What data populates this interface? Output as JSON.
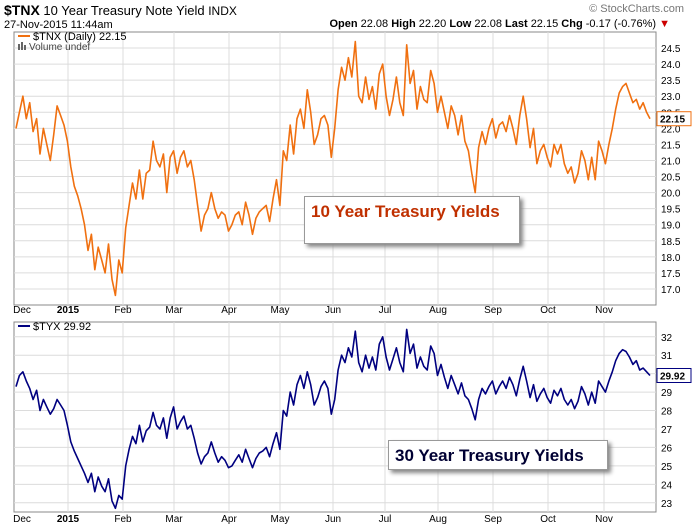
{
  "header": {
    "symbol": "$TNX",
    "name": "10 Year Treasury Note Yield",
    "exchange": "INDX",
    "date": "27-Nov-2015 11:44am",
    "brand": "© StockCharts.com",
    "open_label": "Open",
    "open": "22.08",
    "high_label": "High",
    "high": "22.20",
    "low_label": "Low",
    "low": "22.08",
    "last_label": "Last",
    "last": "22.15",
    "chg_label": "Chg",
    "chg": "-0.17 (-0.76%)"
  },
  "chart_data": [
    {
      "type": "line",
      "legend": "$TNX (Daily) 22.15",
      "volume_legend": "Volume undef",
      "annotation": "10 Year Treasury Yields",
      "last_value_label": "22.15",
      "color": "#f07010",
      "ylim": [
        16.5,
        25.0
      ],
      "yticks": [
        "17.0",
        "17.5",
        "18.0",
        "18.5",
        "19.0",
        "19.5",
        "20.0",
        "20.5",
        "21.0",
        "21.5",
        "22.0",
        "22.5",
        "23.0",
        "23.5",
        "24.0",
        "24.5"
      ],
      "x_labels": [
        "Dec",
        "2015",
        "Feb",
        "Mar",
        "Apr",
        "May",
        "Jun",
        "Jul",
        "Aug",
        "Sep",
        "Oct",
        "Nov"
      ],
      "values": [
        22.0,
        22.5,
        23.0,
        22.3,
        22.8,
        21.9,
        22.3,
        21.2,
        22.0,
        21.5,
        21.0,
        21.8,
        22.7,
        22.4,
        22.1,
        21.6,
        20.8,
        20.2,
        19.9,
        19.5,
        19.0,
        18.2,
        18.7,
        17.6,
        18.3,
        17.9,
        17.5,
        18.4,
        17.3,
        16.8,
        17.9,
        17.5,
        18.9,
        19.6,
        20.3,
        19.8,
        20.7,
        19.8,
        20.6,
        20.7,
        21.6,
        21.0,
        20.8,
        21.2,
        20.0,
        21.1,
        21.3,
        20.6,
        21.1,
        21.3,
        20.8,
        21.0,
        20.4,
        19.6,
        18.8,
        19.3,
        19.5,
        20.0,
        19.5,
        19.2,
        19.4,
        19.3,
        18.8,
        19.0,
        19.3,
        19.4,
        19.0,
        19.7,
        19.3,
        18.7,
        19.2,
        19.4,
        19.5,
        19.6,
        19.1,
        19.8,
        20.4,
        19.6,
        21.3,
        21.0,
        22.1,
        21.2,
        22.3,
        22.6,
        22.0,
        23.2,
        22.5,
        21.5,
        21.8,
        22.3,
        22.4,
        22.1,
        21.1,
        22.0,
        23.2,
        23.9,
        23.5,
        24.2,
        23.6,
        24.7,
        23.0,
        22.8,
        23.6,
        22.9,
        23.3,
        22.6,
        23.7,
        24.0,
        23.0,
        22.4,
        22.9,
        23.6,
        22.8,
        22.4,
        24.6,
        23.4,
        23.8,
        22.6,
        23.3,
        22.9,
        22.8,
        23.8,
        23.4,
        22.5,
        23.0,
        22.5,
        22.0,
        22.7,
        22.4,
        21.8,
        22.4,
        21.6,
        21.3,
        20.6,
        20.0,
        21.4,
        21.9,
        21.5,
        22.0,
        22.3,
        21.7,
        22.1,
        22.2,
        21.9,
        22.4,
        22.0,
        21.5,
        22.4,
        23.0,
        22.3,
        21.4,
        22.0,
        20.9,
        21.3,
        21.5,
        21.1,
        20.8,
        21.5,
        21.2,
        21.5,
        20.9,
        20.6,
        20.8,
        20.3,
        20.6,
        21.3,
        21.0,
        20.4,
        21.1,
        20.4,
        21.6,
        21.3,
        20.9,
        21.5,
        22.0,
        22.6,
        23.1,
        23.3,
        23.4,
        23.1,
        22.8,
        22.9,
        22.6,
        22.8,
        22.5,
        22.3
      ]
    },
    {
      "type": "line",
      "legend": "$TYX 29.92",
      "annotation": "30 Year Treasury Yields",
      "last_value_label": "29.92",
      "color": "#000080",
      "ylim": [
        22.5,
        32.8
      ],
      "yticks": [
        "23",
        "24",
        "25",
        "26",
        "27",
        "28",
        "29",
        "30",
        "31",
        "32"
      ],
      "x_labels": [
        "Dec",
        "2015",
        "Feb",
        "Mar",
        "Apr",
        "May",
        "Jun",
        "Jul",
        "Aug",
        "Sep",
        "Oct",
        "Nov"
      ],
      "values": [
        29.3,
        29.9,
        30.1,
        29.6,
        29.2,
        28.6,
        29.1,
        28.0,
        28.6,
        28.2,
        27.8,
        28.1,
        28.6,
        28.3,
        28.0,
        27.2,
        26.3,
        25.8,
        25.4,
        25.0,
        24.6,
        24.1,
        24.6,
        23.6,
        24.4,
        23.9,
        23.6,
        24.3,
        23.1,
        22.7,
        23.4,
        23.2,
        25.0,
        25.9,
        26.6,
        26.2,
        27.2,
        26.3,
        26.9,
        27.1,
        27.9,
        27.2,
        27.0,
        27.6,
        26.5,
        27.6,
        28.2,
        27.0,
        27.4,
        27.7,
        27.0,
        27.2,
        26.5,
        25.7,
        25.1,
        25.5,
        25.7,
        26.3,
        25.7,
        25.2,
        25.5,
        25.3,
        24.9,
        25.0,
        25.3,
        25.6,
        25.2,
        25.9,
        25.4,
        24.9,
        25.4,
        25.7,
        25.8,
        26.0,
        25.5,
        26.2,
        26.8,
        25.9,
        28.0,
        27.7,
        29.0,
        28.3,
        29.4,
        29.9,
        29.2,
        30.1,
        29.4,
        28.3,
        28.7,
        29.3,
        29.6,
        29.2,
        27.8,
        28.6,
        30.2,
        31.0,
        30.6,
        31.4,
        30.9,
        32.3,
        30.6,
        30.1,
        31.0,
        30.3,
        30.9,
        30.2,
        31.6,
        32.0,
        30.9,
        30.2,
        30.8,
        31.4,
        30.6,
        30.1,
        32.4,
        31.1,
        31.6,
        30.3,
        30.9,
        30.4,
        30.2,
        31.5,
        31.1,
        29.9,
        30.5,
        29.8,
        29.2,
        29.9,
        29.4,
        28.9,
        29.5,
        28.8,
        28.6,
        28.1,
        27.5,
        28.6,
        29.2,
        28.9,
        29.3,
        29.6,
        28.9,
        29.3,
        29.6,
        29.2,
        29.8,
        29.4,
        28.8,
        29.7,
        30.4,
        29.6,
        28.7,
        29.4,
        28.5,
        28.9,
        29.2,
        28.7,
        28.4,
        29.1,
        28.8,
        29.2,
        28.6,
        28.3,
        28.6,
        28.1,
        28.5,
        29.3,
        28.9,
        28.3,
        29.0,
        28.4,
        29.6,
        29.3,
        29.0,
        29.6,
        30.1,
        30.7,
        31.1,
        31.3,
        31.2,
        30.9,
        30.5,
        30.7,
        30.2,
        30.3,
        30.1,
        29.9
      ]
    }
  ]
}
